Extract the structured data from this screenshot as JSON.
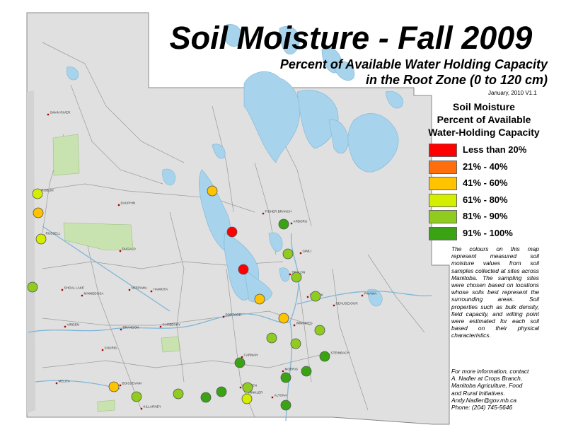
{
  "title": "Soil Moisture - Fall 2009",
  "subtitle_line1": "Percent of Available Water Holding Capacity",
  "subtitle_line2": "in the Root Zone (0 to 120 cm)",
  "version": "January, 2010    V1.1",
  "legend": {
    "title_line1": "Soil Moisture",
    "title_line2": "Percent of Available",
    "title_line3": "Water-Holding Capacity",
    "items": [
      {
        "label": "Less than 20%",
        "color": "#ff0000"
      },
      {
        "label": "21% - 40%",
        "color": "#ff6d0d"
      },
      {
        "label": "41% - 60%",
        "color": "#ffc300"
      },
      {
        "label": "61% - 80%",
        "color": "#d4ee00"
      },
      {
        "label": "81% - 90%",
        "color": "#8fcc1f"
      },
      {
        "label": "91% - 100%",
        "color": "#3aa314"
      }
    ]
  },
  "description": "The colours on this map represent measured soil moisture values from soil samples collected at sites across Manitoba. The sampling sites were chosen based on locations whose soils best represent the surrounding areas. Soil properties such as bulk density, field capacity, and wilting point were estimated for each soil based on their physical characteristics.",
  "contact": {
    "line1": "For more information, contact",
    "line2": "A. Nadler at Crops Branch,",
    "line3": "Manitoba Agriculture, Food",
    "line4": "and Rural Initiatives.",
    "email": "Andy.Nadler@gov.mb.ca",
    "phone": "Phone: (204) 745-5646"
  },
  "towns": [
    {
      "name": "SWAN RIVER"
    },
    {
      "name": "ROBLIN"
    },
    {
      "name": "DAUPHIN"
    },
    {
      "name": "RUSSELL"
    },
    {
      "name": "DUGALD"
    },
    {
      "name": "FISHER BRANCH"
    },
    {
      "name": "ARBORG"
    },
    {
      "name": "GIMLI"
    },
    {
      "name": "TEULON"
    },
    {
      "name": "SELKIRK"
    },
    {
      "name": "BEAUSEJOUR"
    },
    {
      "name": "PINAWA"
    },
    {
      "name": "SHOAL LAKE"
    },
    {
      "name": "MINNEDOSA"
    },
    {
      "name": "NEEPAWA"
    },
    {
      "name": "HAMIOTA"
    },
    {
      "name": "PORTAGE"
    },
    {
      "name": "WINNIPEG"
    },
    {
      "name": "VIRDEN"
    },
    {
      "name": "BRANDON"
    },
    {
      "name": "CARBERRY"
    },
    {
      "name": "SOURIS"
    },
    {
      "name": "CARMAN"
    },
    {
      "name": "STEINBACH"
    },
    {
      "name": "MORRIS"
    },
    {
      "name": "MELITA"
    },
    {
      "name": "BOISSEVAIN"
    },
    {
      "name": "KILLARNEY"
    },
    {
      "name": "MORDEN"
    },
    {
      "name": "WINKLER"
    },
    {
      "name": "ALTONA"
    }
  ],
  "sites": [
    {
      "category": 3
    },
    {
      "category": 2
    },
    {
      "category": 3
    },
    {
      "category": 2
    },
    {
      "category": 0
    },
    {
      "category": 0
    },
    {
      "category": 5
    },
    {
      "category": 4
    },
    {
      "category": 4
    },
    {
      "category": 4
    },
    {
      "category": 2
    },
    {
      "category": 2
    },
    {
      "category": 4
    },
    {
      "category": 4
    },
    {
      "category": 4
    },
    {
      "category": 4
    },
    {
      "category": 5
    },
    {
      "category": 5
    },
    {
      "category": 5
    },
    {
      "category": 5
    },
    {
      "category": 5
    },
    {
      "category": 2
    },
    {
      "category": 4
    },
    {
      "category": 4
    },
    {
      "category": 5
    },
    {
      "category": 3
    },
    {
      "category": 5
    },
    {
      "category": 4
    }
  ]
}
